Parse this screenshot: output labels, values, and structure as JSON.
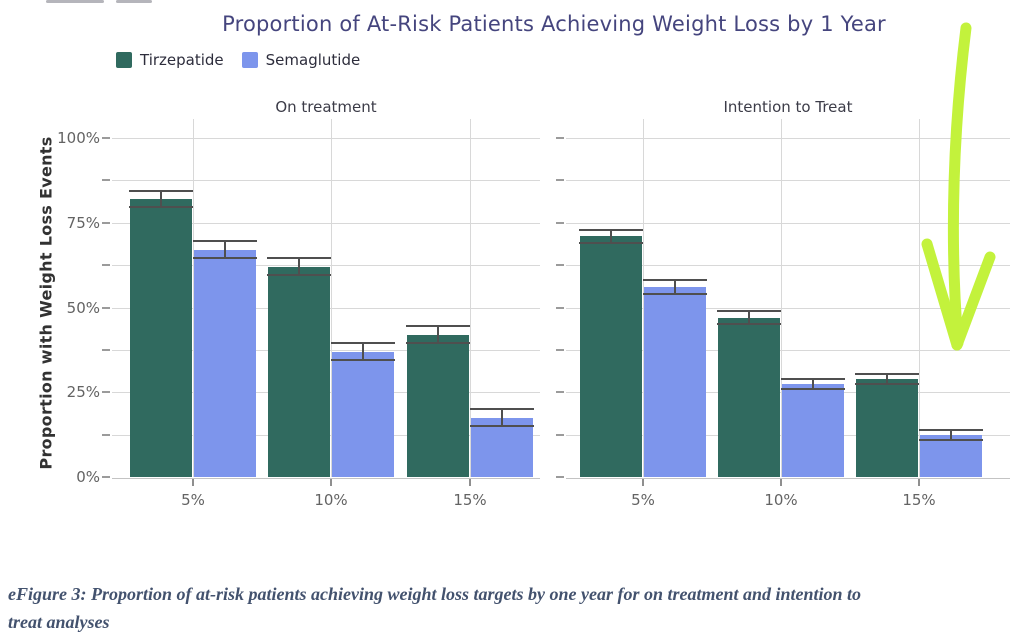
{
  "chart_data": {
    "type": "bar",
    "title": "Proportion of At-Risk Patients Achieving Weight Loss by 1 Year",
    "ylabel": "Proportion with Weight Loss Events",
    "xlabel": "",
    "ylim": [
      0,
      100
    ],
    "yticks": [
      0,
      25,
      50,
      75,
      100
    ],
    "ytick_labels": [
      "0%",
      "25%",
      "50%",
      "75%",
      "100%"
    ],
    "grid": "on",
    "grid_step_pct": 12.5,
    "legend_position": "top-left",
    "categories": [
      "5%",
      "10%",
      "15%"
    ],
    "legend": [
      {
        "label": "Tirzepatide",
        "color": "#306a5f"
      },
      {
        "label": "Semaglutide",
        "color": "#7d95ec"
      }
    ],
    "panels": [
      {
        "title": "On treatment",
        "series": [
          {
            "name": "Tirzepatide",
            "color": "#306a5f",
            "values": [
              82,
              62,
              42
            ],
            "errors": [
              2.5,
              2.5,
              2.5
            ]
          },
          {
            "name": "Semaglutide",
            "color": "#7d95ec",
            "values": [
              67,
              37,
              17.5
            ],
            "errors": [
              2.5,
              2.5,
              2.5
            ]
          }
        ]
      },
      {
        "title": "Intention to Treat",
        "series": [
          {
            "name": "Tirzepatide",
            "color": "#306a5f",
            "values": [
              71,
              47,
              29
            ],
            "errors": [
              2,
              2,
              1.5
            ]
          },
          {
            "name": "Semaglutide",
            "color": "#7d95ec",
            "values": [
              56,
              27.5,
              12.5
            ],
            "errors": [
              2,
              1.5,
              1.5
            ]
          }
        ]
      }
    ],
    "annotation": {
      "type": "hand-drawn-arrow",
      "color": "#c3f23c",
      "direction": "down",
      "points_to": "Semaglutide 15% bar in Intention to Treat panel"
    }
  },
  "caption": {
    "line1": "eFigure 3: Proportion of at-risk patients achieving weight loss targets by one year for on treatment and intention to",
    "line2": "treat analyses"
  }
}
